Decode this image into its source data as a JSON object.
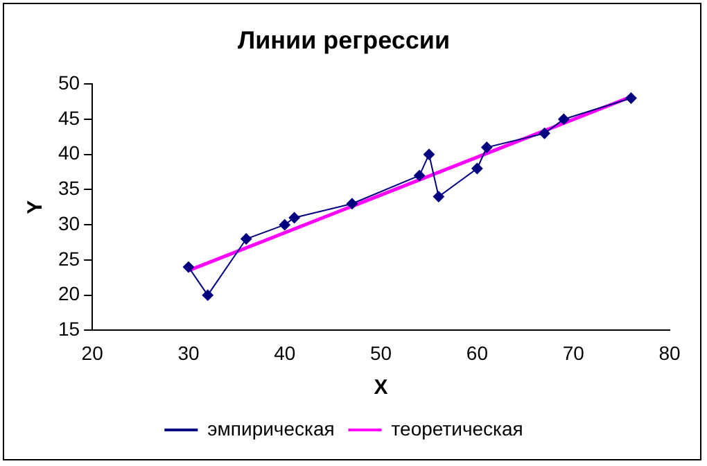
{
  "chart_data": {
    "type": "line",
    "title": "Линии регрессии",
    "xlabel": "X",
    "ylabel": "Y",
    "xlim": [
      20,
      80
    ],
    "xticks": [
      20,
      30,
      40,
      50,
      60,
      70,
      80
    ],
    "ylim": [
      15,
      50
    ],
    "yticks": [
      15,
      20,
      25,
      30,
      35,
      40,
      45,
      50
    ],
    "grid": false,
    "legend": "bottom",
    "series": [
      {
        "name": "эмпирическая",
        "color": "#000080",
        "marker": "diamond",
        "x": [
          30,
          32,
          36,
          40,
          41,
          47,
          54,
          55,
          56,
          60,
          61,
          67,
          69,
          76
        ],
        "values": [
          24,
          20,
          28,
          30,
          31,
          33,
          37,
          40,
          34,
          38,
          41,
          43,
          45,
          48
        ]
      },
      {
        "name": "теоретическая",
        "color": "#ff00ff",
        "marker": "none",
        "x": [
          30,
          76
        ],
        "values": [
          23.5,
          48.2
        ]
      }
    ]
  }
}
